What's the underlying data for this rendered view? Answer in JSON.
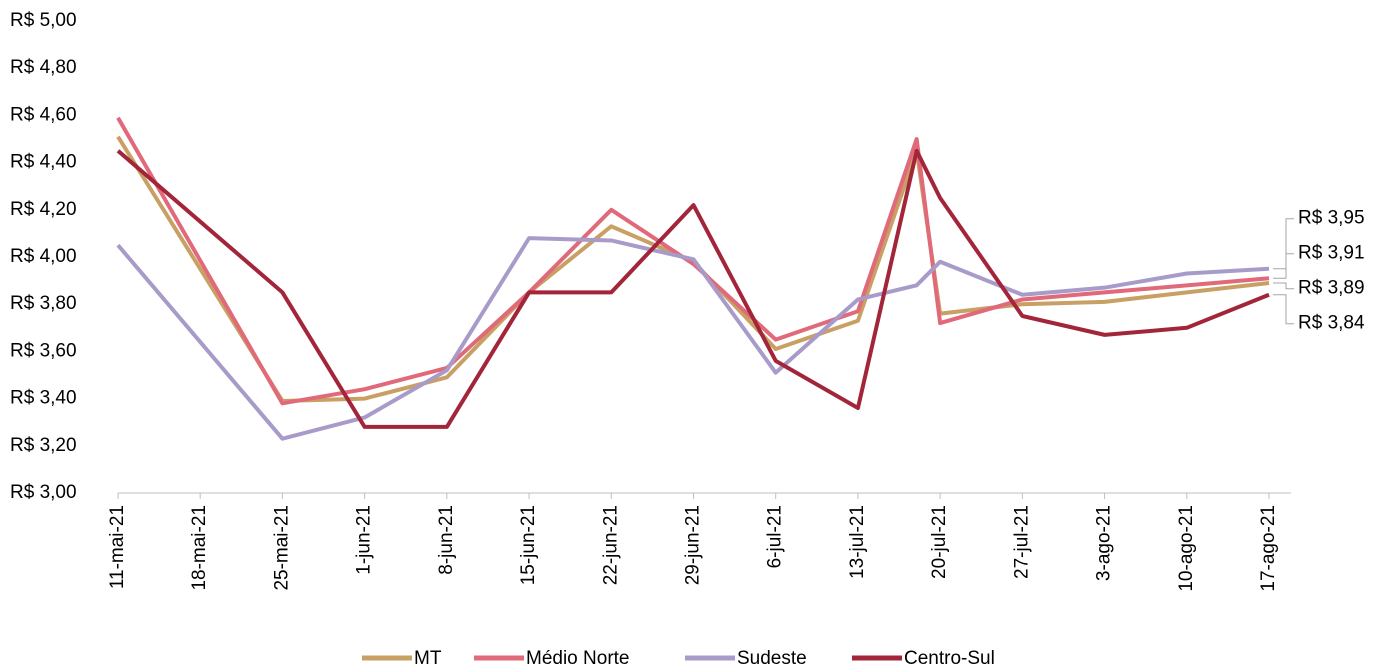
{
  "chart_data": {
    "type": "line",
    "x": [
      0,
      14,
      21,
      28,
      35,
      42,
      49,
      56,
      63,
      68,
      70,
      77,
      84,
      91,
      98
    ],
    "xlim": [
      0,
      98
    ],
    "xticks": [
      {
        "value": 0,
        "label": "11-mai-21"
      },
      {
        "value": 7,
        "label": "18-mai-21"
      },
      {
        "value": 14,
        "label": "25-mai-21"
      },
      {
        "value": 21,
        "label": "1-jun-21"
      },
      {
        "value": 28,
        "label": "8-jun-21"
      },
      {
        "value": 35,
        "label": "15-jun-21"
      },
      {
        "value": 42,
        "label": "22-jun-21"
      },
      {
        "value": 49,
        "label": "29-jun-21"
      },
      {
        "value": 56,
        "label": "6-jul-21"
      },
      {
        "value": 63,
        "label": "13-jul-21"
      },
      {
        "value": 70,
        "label": "20-jul-21"
      },
      {
        "value": 77,
        "label": "27-jul-21"
      },
      {
        "value": 84,
        "label": "3-ago-21"
      },
      {
        "value": 91,
        "label": "10-ago-21"
      },
      {
        "value": 98,
        "label": "17-ago-21"
      }
    ],
    "ylim": [
      3,
      5
    ],
    "yticks": [
      {
        "value": 3,
        "label": "R$ 3,00"
      },
      {
        "value": 3.2,
        "label": "R$ 3,20"
      },
      {
        "value": 3.4,
        "label": "R$ 3,40"
      },
      {
        "value": 3.6,
        "label": "R$ 3,60"
      },
      {
        "value": 3.8,
        "label": "R$ 3,80"
      },
      {
        "value": 4,
        "label": "R$ 4,00"
      },
      {
        "value": 4.2,
        "label": "R$ 4,20"
      },
      {
        "value": 4.4,
        "label": "R$ 4,40"
      },
      {
        "value": 4.6,
        "label": "R$ 4,60"
      },
      {
        "value": 4.8,
        "label": "R$ 4,80"
      },
      {
        "value": 5,
        "label": "R$ 5,00"
      }
    ],
    "grid": false,
    "legend": "bottom",
    "series": [
      {
        "name": "MT",
        "color": "#c9a063",
        "values": [
          4.51,
          3.39,
          3.4,
          3.49,
          3.85,
          4.13,
          3.98,
          3.61,
          3.73,
          4.45,
          3.76,
          3.8,
          3.81,
          3.85,
          3.89
        ],
        "value_labels": [
          null,
          null,
          null,
          null,
          null,
          null,
          null,
          null,
          null,
          null,
          null,
          null,
          null,
          null,
          "R$ 3,89"
        ]
      },
      {
        "name": "Médio Norte",
        "color": "#e0697a",
        "values": [
          4.59,
          3.38,
          3.44,
          3.53,
          3.85,
          4.2,
          3.97,
          3.65,
          3.77,
          4.5,
          3.72,
          3.82,
          3.85,
          3.88,
          3.91
        ],
        "value_labels": [
          null,
          null,
          null,
          null,
          null,
          null,
          null,
          null,
          null,
          null,
          null,
          null,
          null,
          null,
          "R$ 3,91"
        ]
      },
      {
        "name": "Sudeste",
        "color": "#a89bc9",
        "values": [
          4.05,
          3.23,
          3.32,
          3.52,
          4.08,
          4.07,
          3.99,
          3.51,
          3.82,
          3.88,
          3.98,
          3.84,
          3.87,
          3.93,
          3.95
        ],
        "value_labels": [
          null,
          null,
          null,
          null,
          null,
          null,
          null,
          null,
          null,
          null,
          null,
          null,
          null,
          null,
          "R$ 3,95"
        ]
      },
      {
        "name": "Centro-Sul",
        "color": "#a3253a",
        "values": [
          4.45,
          3.85,
          3.28,
          3.28,
          3.85,
          3.85,
          4.22,
          3.56,
          3.36,
          4.45,
          4.25,
          3.75,
          3.67,
          3.7,
          3.84
        ],
        "value_labels": [
          null,
          null,
          null,
          null,
          null,
          null,
          null,
          null,
          null,
          null,
          null,
          null,
          null,
          null,
          "R$ 3,84"
        ]
      }
    ]
  }
}
